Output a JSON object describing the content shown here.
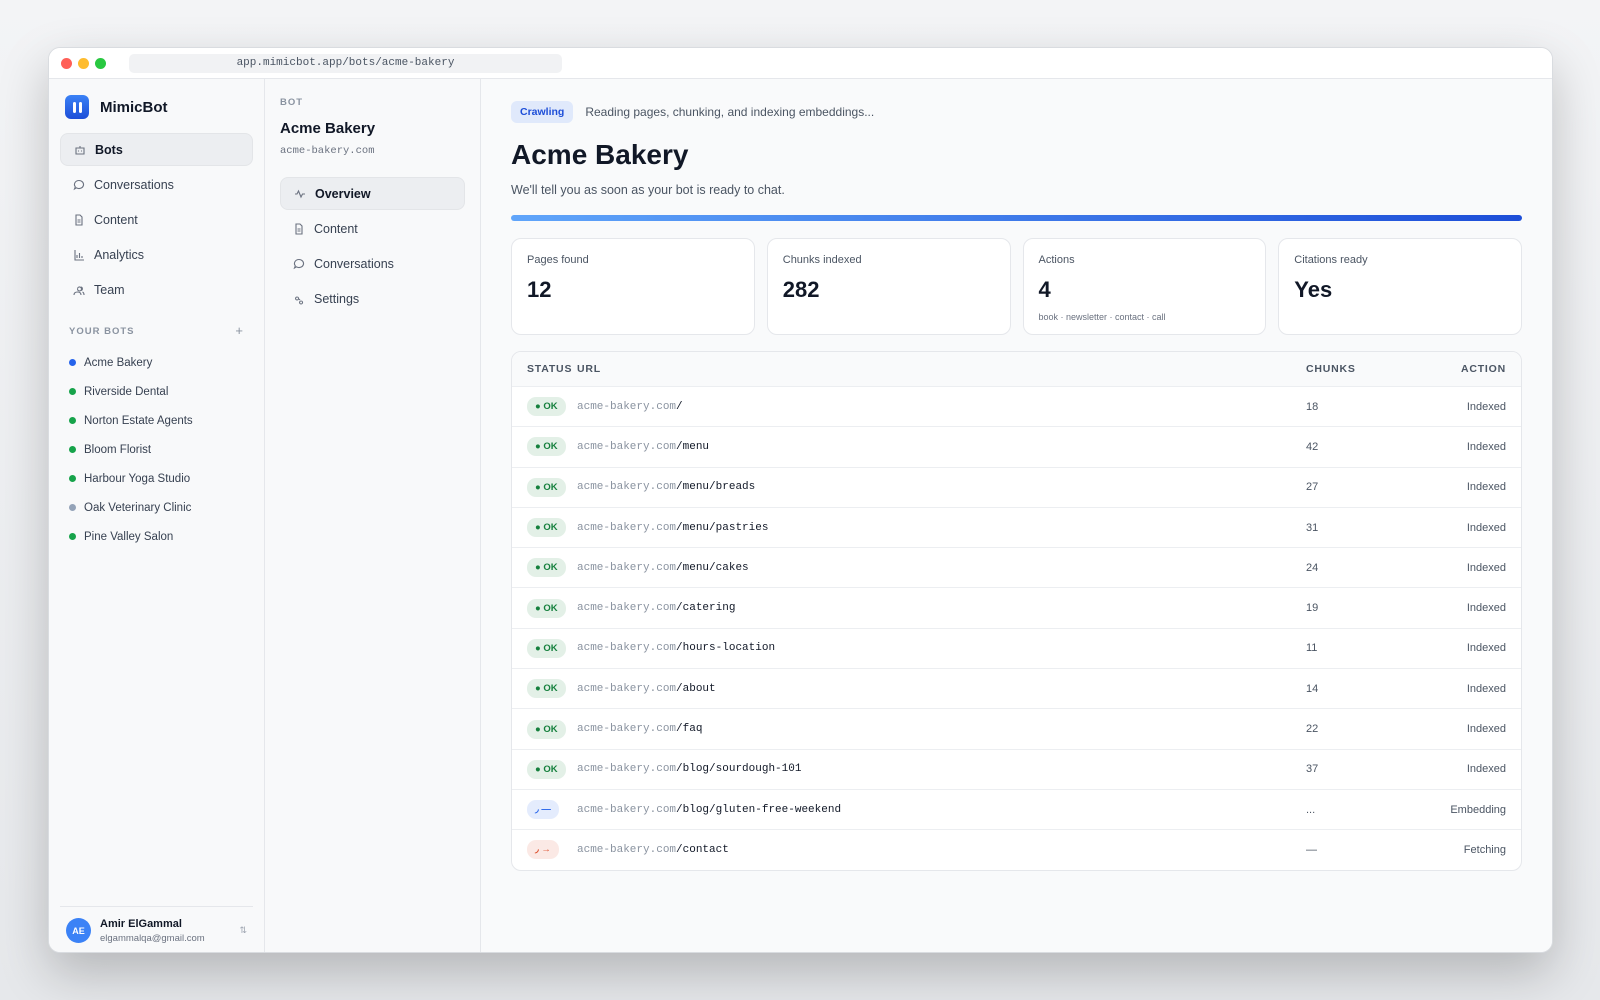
{
  "browser": {
    "url": "app.mimicbot.app/bots/acme-bakery"
  },
  "sidebar": {
    "brand": "MimicBot",
    "nav": [
      "Bots",
      "Conversations",
      "Content",
      "Analytics",
      "Team"
    ],
    "bots_heading": "YOUR BOTS",
    "bots": [
      {
        "name": "Acme Bakery",
        "color": "#2563eb"
      },
      {
        "name": "Riverside Dental",
        "color": "#16a34a"
      },
      {
        "name": "Norton Estate Agents",
        "color": "#16a34a"
      },
      {
        "name": "Bloom Florist",
        "color": "#16a34a"
      },
      {
        "name": "Harbour Yoga Studio",
        "color": "#16a34a"
      },
      {
        "name": "Oak Veterinary Clinic",
        "color": "#94a3b8"
      },
      {
        "name": "Pine Valley Salon",
        "color": "#16a34a"
      }
    ],
    "user": {
      "initials": "AE",
      "name": "Amir ElGammal",
      "email": "elgammalqa@gmail.com"
    }
  },
  "bot_panel": {
    "label": "BOT",
    "name": "Acme Bakery",
    "domain": "acme-bakery.com",
    "nav": [
      "Overview",
      "Content",
      "Conversations",
      "Settings"
    ]
  },
  "main": {
    "badge": "Crawling",
    "status": "Reading pages, chunking, and indexing embeddings...",
    "title": "Acme Bakery",
    "subtitle": "We'll tell you as soon as your bot is ready to chat.",
    "stats": [
      {
        "label": "Pages found",
        "value": 12
      },
      {
        "label": "Chunks indexed",
        "value": 282
      },
      {
        "label": "Actions",
        "value": 4,
        "note": "book · newsletter · contact · call"
      },
      {
        "label": "Citations ready",
        "value": "Yes"
      }
    ],
    "table": {
      "columns": [
        "STATUS",
        "URL",
        "CHUNKS",
        "ACTION"
      ],
      "rows": [
        {
          "status": "● OK",
          "color": "#15803d",
          "host": "acme-bakery.com",
          "path": "/",
          "chunks": 18,
          "action": "Indexed"
        },
        {
          "status": "● OK",
          "color": "#15803d",
          "host": "acme-bakery.com",
          "path": "/menu",
          "chunks": 42,
          "action": "Indexed"
        },
        {
          "status": "● OK",
          "color": "#15803d",
          "host": "acme-bakery.com",
          "path": "/menu/breads",
          "chunks": 27,
          "action": "Indexed"
        },
        {
          "status": "● OK",
          "color": "#15803d",
          "host": "acme-bakery.com",
          "path": "/menu/pastries",
          "chunks": 31,
          "action": "Indexed"
        },
        {
          "status": "● OK",
          "color": "#15803d",
          "host": "acme-bakery.com",
          "path": "/menu/cakes",
          "chunks": 24,
          "action": "Indexed"
        },
        {
          "status": "● OK",
          "color": "#15803d",
          "host": "acme-bakery.com",
          "path": "/catering",
          "chunks": 19,
          "action": "Indexed"
        },
        {
          "status": "● OK",
          "color": "#15803d",
          "host": "acme-bakery.com",
          "path": "/hours-location",
          "chunks": 11,
          "action": "Indexed"
        },
        {
          "status": "● OK",
          "color": "#15803d",
          "host": "acme-bakery.com",
          "path": "/about",
          "chunks": 14,
          "action": "Indexed"
        },
        {
          "status": "● OK",
          "color": "#15803d",
          "host": "acme-bakery.com",
          "path": "/faq",
          "chunks": 22,
          "action": "Indexed"
        },
        {
          "status": "● OK",
          "color": "#15803d",
          "host": "acme-bakery.com",
          "path": "/blog/sourdough-101",
          "chunks": 37,
          "action": "Indexed"
        },
        {
          "status": "◞ —",
          "color": "#2563eb",
          "host": "acme-bakery.com",
          "path": "/blog/gluten-free-weekend",
          "chunks": "...",
          "action": "Embedding"
        },
        {
          "status": "◞ →",
          "color": "#dc4a26",
          "host": "acme-bakery.com",
          "path": "/contact",
          "chunks": "—",
          "action": "Fetching"
        }
      ]
    }
  }
}
